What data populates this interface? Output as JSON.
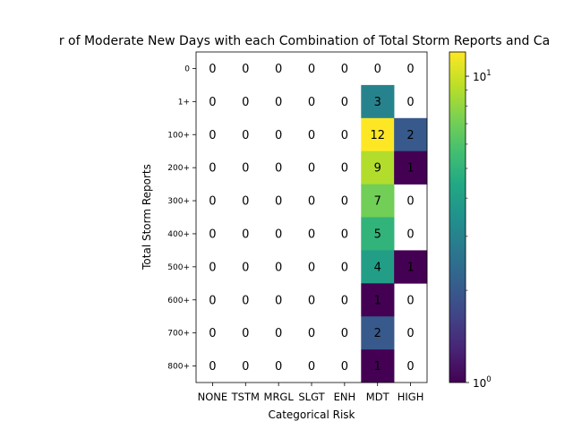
{
  "chart_data": {
    "type": "heatmap",
    "title": "r of Moderate New Days with each Combination of Total Storm Reports and Ca",
    "xlabel": "Categorical Risk",
    "ylabel": "Total Storm Reports",
    "x_categories": [
      "NONE",
      "TSTM",
      "MRGL",
      "SLGT",
      "ENH",
      "MDT",
      "HIGH"
    ],
    "y_categories": [
      "0",
      "1+",
      "100+",
      "200+",
      "300+",
      "400+",
      "500+",
      "600+",
      "700+",
      "800+"
    ],
    "values": [
      [
        0,
        0,
        0,
        0,
        0,
        0,
        0
      ],
      [
        0,
        0,
        0,
        0,
        0,
        3,
        0
      ],
      [
        0,
        0,
        0,
        0,
        0,
        12,
        2
      ],
      [
        0,
        0,
        0,
        0,
        0,
        9,
        1
      ],
      [
        0,
        0,
        0,
        0,
        0,
        7,
        0
      ],
      [
        0,
        0,
        0,
        0,
        0,
        5,
        0
      ],
      [
        0,
        0,
        0,
        0,
        0,
        4,
        1
      ],
      [
        0,
        0,
        0,
        0,
        0,
        1,
        0
      ],
      [
        0,
        0,
        0,
        0,
        0,
        2,
        0
      ],
      [
        0,
        0,
        0,
        0,
        0,
        1,
        0
      ]
    ],
    "colorbar": {
      "scale": "log",
      "colormap": "viridis",
      "range": [
        1,
        12
      ],
      "tick_labels": [
        {
          "value": 1,
          "base": "10",
          "exp": "0"
        },
        {
          "value": 10,
          "base": "10",
          "exp": "1"
        }
      ]
    },
    "zero_cells": "blank"
  }
}
